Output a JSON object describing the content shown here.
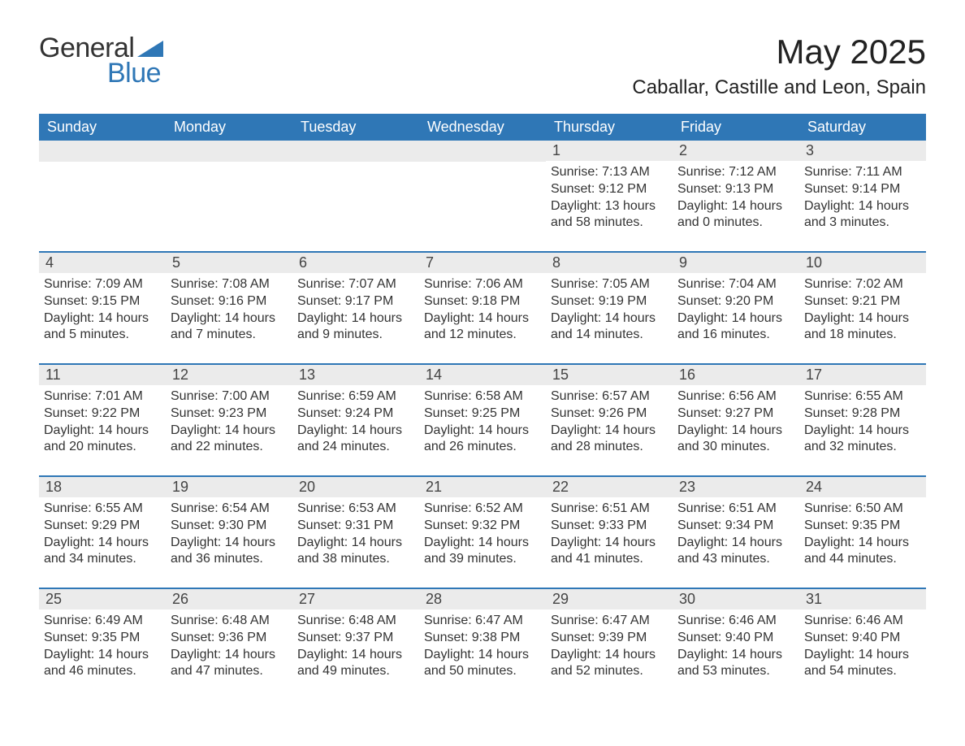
{
  "logo": {
    "word1": "General",
    "word2": "Blue",
    "shape_color": "#2f77b6",
    "word2_color": "#2f77b6",
    "word1_color": "#333333"
  },
  "header": {
    "title": "May 2025",
    "subtitle": "Caballar, Castille and Leon, Spain",
    "title_fontsize": 42,
    "subtitle_fontsize": 24
  },
  "styling": {
    "header_bg": "#2f77b6",
    "header_text": "#ffffff",
    "day_bar_bg": "#ebebeb",
    "day_bar_text": "#444444",
    "body_text": "#333333",
    "row_border_color": "#2f77b6",
    "page_bg": "#ffffff",
    "header_fontsize": 18,
    "day_number_fontsize": 18,
    "content_fontsize": 16
  },
  "day_names": [
    "Sunday",
    "Monday",
    "Tuesday",
    "Wednesday",
    "Thursday",
    "Friday",
    "Saturday"
  ],
  "weeks": [
    [
      {
        "day": "",
        "sunrise": "",
        "sunset": "",
        "daylight": ""
      },
      {
        "day": "",
        "sunrise": "",
        "sunset": "",
        "daylight": ""
      },
      {
        "day": "",
        "sunrise": "",
        "sunset": "",
        "daylight": ""
      },
      {
        "day": "",
        "sunrise": "",
        "sunset": "",
        "daylight": ""
      },
      {
        "day": "1",
        "sunrise": "Sunrise: 7:13 AM",
        "sunset": "Sunset: 9:12 PM",
        "daylight": "Daylight: 13 hours and 58 minutes."
      },
      {
        "day": "2",
        "sunrise": "Sunrise: 7:12 AM",
        "sunset": "Sunset: 9:13 PM",
        "daylight": "Daylight: 14 hours and 0 minutes."
      },
      {
        "day": "3",
        "sunrise": "Sunrise: 7:11 AM",
        "sunset": "Sunset: 9:14 PM",
        "daylight": "Daylight: 14 hours and 3 minutes."
      }
    ],
    [
      {
        "day": "4",
        "sunrise": "Sunrise: 7:09 AM",
        "sunset": "Sunset: 9:15 PM",
        "daylight": "Daylight: 14 hours and 5 minutes."
      },
      {
        "day": "5",
        "sunrise": "Sunrise: 7:08 AM",
        "sunset": "Sunset: 9:16 PM",
        "daylight": "Daylight: 14 hours and 7 minutes."
      },
      {
        "day": "6",
        "sunrise": "Sunrise: 7:07 AM",
        "sunset": "Sunset: 9:17 PM",
        "daylight": "Daylight: 14 hours and 9 minutes."
      },
      {
        "day": "7",
        "sunrise": "Sunrise: 7:06 AM",
        "sunset": "Sunset: 9:18 PM",
        "daylight": "Daylight: 14 hours and 12 minutes."
      },
      {
        "day": "8",
        "sunrise": "Sunrise: 7:05 AM",
        "sunset": "Sunset: 9:19 PM",
        "daylight": "Daylight: 14 hours and 14 minutes."
      },
      {
        "day": "9",
        "sunrise": "Sunrise: 7:04 AM",
        "sunset": "Sunset: 9:20 PM",
        "daylight": "Daylight: 14 hours and 16 minutes."
      },
      {
        "day": "10",
        "sunrise": "Sunrise: 7:02 AM",
        "sunset": "Sunset: 9:21 PM",
        "daylight": "Daylight: 14 hours and 18 minutes."
      }
    ],
    [
      {
        "day": "11",
        "sunrise": "Sunrise: 7:01 AM",
        "sunset": "Sunset: 9:22 PM",
        "daylight": "Daylight: 14 hours and 20 minutes."
      },
      {
        "day": "12",
        "sunrise": "Sunrise: 7:00 AM",
        "sunset": "Sunset: 9:23 PM",
        "daylight": "Daylight: 14 hours and 22 minutes."
      },
      {
        "day": "13",
        "sunrise": "Sunrise: 6:59 AM",
        "sunset": "Sunset: 9:24 PM",
        "daylight": "Daylight: 14 hours and 24 minutes."
      },
      {
        "day": "14",
        "sunrise": "Sunrise: 6:58 AM",
        "sunset": "Sunset: 9:25 PM",
        "daylight": "Daylight: 14 hours and 26 minutes."
      },
      {
        "day": "15",
        "sunrise": "Sunrise: 6:57 AM",
        "sunset": "Sunset: 9:26 PM",
        "daylight": "Daylight: 14 hours and 28 minutes."
      },
      {
        "day": "16",
        "sunrise": "Sunrise: 6:56 AM",
        "sunset": "Sunset: 9:27 PM",
        "daylight": "Daylight: 14 hours and 30 minutes."
      },
      {
        "day": "17",
        "sunrise": "Sunrise: 6:55 AM",
        "sunset": "Sunset: 9:28 PM",
        "daylight": "Daylight: 14 hours and 32 minutes."
      }
    ],
    [
      {
        "day": "18",
        "sunrise": "Sunrise: 6:55 AM",
        "sunset": "Sunset: 9:29 PM",
        "daylight": "Daylight: 14 hours and 34 minutes."
      },
      {
        "day": "19",
        "sunrise": "Sunrise: 6:54 AM",
        "sunset": "Sunset: 9:30 PM",
        "daylight": "Daylight: 14 hours and 36 minutes."
      },
      {
        "day": "20",
        "sunrise": "Sunrise: 6:53 AM",
        "sunset": "Sunset: 9:31 PM",
        "daylight": "Daylight: 14 hours and 38 minutes."
      },
      {
        "day": "21",
        "sunrise": "Sunrise: 6:52 AM",
        "sunset": "Sunset: 9:32 PM",
        "daylight": "Daylight: 14 hours and 39 minutes."
      },
      {
        "day": "22",
        "sunrise": "Sunrise: 6:51 AM",
        "sunset": "Sunset: 9:33 PM",
        "daylight": "Daylight: 14 hours and 41 minutes."
      },
      {
        "day": "23",
        "sunrise": "Sunrise: 6:51 AM",
        "sunset": "Sunset: 9:34 PM",
        "daylight": "Daylight: 14 hours and 43 minutes."
      },
      {
        "day": "24",
        "sunrise": "Sunrise: 6:50 AM",
        "sunset": "Sunset: 9:35 PM",
        "daylight": "Daylight: 14 hours and 44 minutes."
      }
    ],
    [
      {
        "day": "25",
        "sunrise": "Sunrise: 6:49 AM",
        "sunset": "Sunset: 9:35 PM",
        "daylight": "Daylight: 14 hours and 46 minutes."
      },
      {
        "day": "26",
        "sunrise": "Sunrise: 6:48 AM",
        "sunset": "Sunset: 9:36 PM",
        "daylight": "Daylight: 14 hours and 47 minutes."
      },
      {
        "day": "27",
        "sunrise": "Sunrise: 6:48 AM",
        "sunset": "Sunset: 9:37 PM",
        "daylight": "Daylight: 14 hours and 49 minutes."
      },
      {
        "day": "28",
        "sunrise": "Sunrise: 6:47 AM",
        "sunset": "Sunset: 9:38 PM",
        "daylight": "Daylight: 14 hours and 50 minutes."
      },
      {
        "day": "29",
        "sunrise": "Sunrise: 6:47 AM",
        "sunset": "Sunset: 9:39 PM",
        "daylight": "Daylight: 14 hours and 52 minutes."
      },
      {
        "day": "30",
        "sunrise": "Sunrise: 6:46 AM",
        "sunset": "Sunset: 9:40 PM",
        "daylight": "Daylight: 14 hours and 53 minutes."
      },
      {
        "day": "31",
        "sunrise": "Sunrise: 6:46 AM",
        "sunset": "Sunset: 9:40 PM",
        "daylight": "Daylight: 14 hours and 54 minutes."
      }
    ]
  ]
}
